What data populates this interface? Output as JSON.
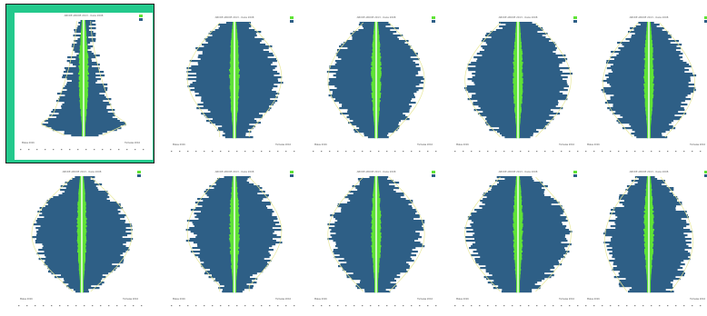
{
  "gallery": {
    "selected_index": 0,
    "thumbnails": [
      {
        "title": "ABCDE ABCDE 2013 - Oeiie 2008",
        "footer_left": "Males 2016",
        "footer_right": "Females 2016",
        "shape": "flare"
      },
      {
        "title": "ABCDE ABCDE 2013 - Oeiie 2008",
        "footer_left": "Males 2016",
        "footer_right": "Females 2016",
        "shape": "barrel"
      },
      {
        "title": "ABCDE ABCDE 2013 - Oeiie 2008",
        "footer_left": "Males 2016",
        "footer_right": "Females 2016",
        "shape": "ragged"
      },
      {
        "title": "ABCDE ABCDE 2013 - Oeiie 2008",
        "footer_left": "Males 2016",
        "footer_right": "Females 2016",
        "shape": "wide"
      },
      {
        "title": "ABCDE ABCDE 2013 - Oeiie 2008",
        "footer_left": "Males 2016",
        "footer_right": "Females 2016",
        "shape": "peak"
      },
      {
        "title": "ABCDE ABCDE 2013 - Oeiie 2008",
        "footer_left": "Males 2016",
        "footer_right": "Females 2016",
        "shape": "diamond"
      },
      {
        "title": "ABCDE ABCDE 2013 - Oeiie 2008",
        "footer_left": "Males 2016",
        "footer_right": "Females 2016",
        "shape": "barrel"
      },
      {
        "title": "ABCDE ABCDE 2013 - Oeiie 2008",
        "footer_left": "Males 2016",
        "footer_right": "Females 2016",
        "shape": "ragged"
      },
      {
        "title": "ABCDE ABCDE 2013 - Oeiie 2008",
        "footer_left": "Males 2016",
        "footer_right": "Females 2016",
        "shape": "wide"
      },
      {
        "title": "ABCDE ABCDE 2013 - Oeiie 2008",
        "footer_left": "Males 2016",
        "footer_right": "Females 2016",
        "shape": "narrow"
      }
    ]
  },
  "colors": {
    "bars": "#2e5f86",
    "center": "#5fe336",
    "frame": "#23c98c",
    "outline": "#e8e89a"
  }
}
